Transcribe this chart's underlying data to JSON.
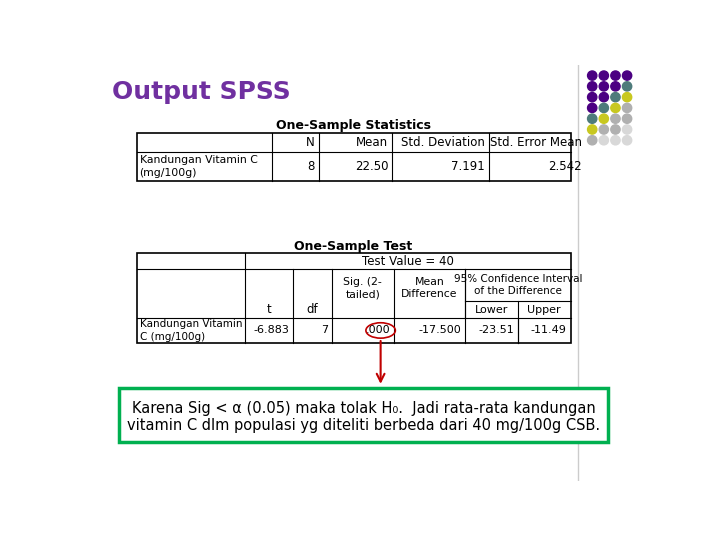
{
  "title": "Output SPSS",
  "title_color": "#7030A0",
  "title_fontsize": 18,
  "bg_color": "#FFFFFF",
  "table1_title": "One-Sample Statistics",
  "table1_headers": [
    "",
    "N",
    "Mean",
    "Std. Deviation",
    "Std. Error Mean"
  ],
  "table1_row_label": "Kandungan Vitamin C\n(mg/100g)",
  "table1_values": [
    "8",
    "22.50",
    "7.191",
    "2.542"
  ],
  "table2_title": "One-Sample Test",
  "table2_subheader": "Test Value = 40",
  "table2_row_label": "Kandungan Vitamin\nC (mg/100g)",
  "table2_values": [
    "-6.883",
    "7",
    ".000",
    "-17.500",
    "-23.51",
    "-11.49"
  ],
  "conclusion_text_line1": "Karena Sig < α (0.05) maka tolak H₀.  Jadi rata-rata kandungan",
  "conclusion_text_line2": "vitamin C dlm populasi yg diteliti berbeda dari 40 mg/100g CSB.",
  "conclusion_border_color": "#00B050",
  "arrow_color": "#C00000",
  "circle_color": "#C00000",
  "dot_grid": [
    [
      "#4B0082",
      "#4B0082",
      "#4B0082",
      "#4B0082"
    ],
    [
      "#4B0082",
      "#4B0082",
      "#4B0082",
      "#5B8A8A"
    ],
    [
      "#4B0082",
      "#4B0082",
      "#5B8A8A",
      "#C8C800"
    ],
    [
      "#4B0082",
      "#5B8A8A",
      "#C8C800",
      "#C8C8C8"
    ],
    [
      "#5B8A8A",
      "#C8C800",
      "#C8C8C8",
      "#C8C8C8"
    ],
    [
      "#C8C800",
      "#C8C8C8",
      "#C8C8C8",
      "#DCDCDC"
    ],
    [
      "#C8C8C8",
      "#DCDCDC",
      "#DCDCDC",
      "#DCDCDC"
    ]
  ]
}
